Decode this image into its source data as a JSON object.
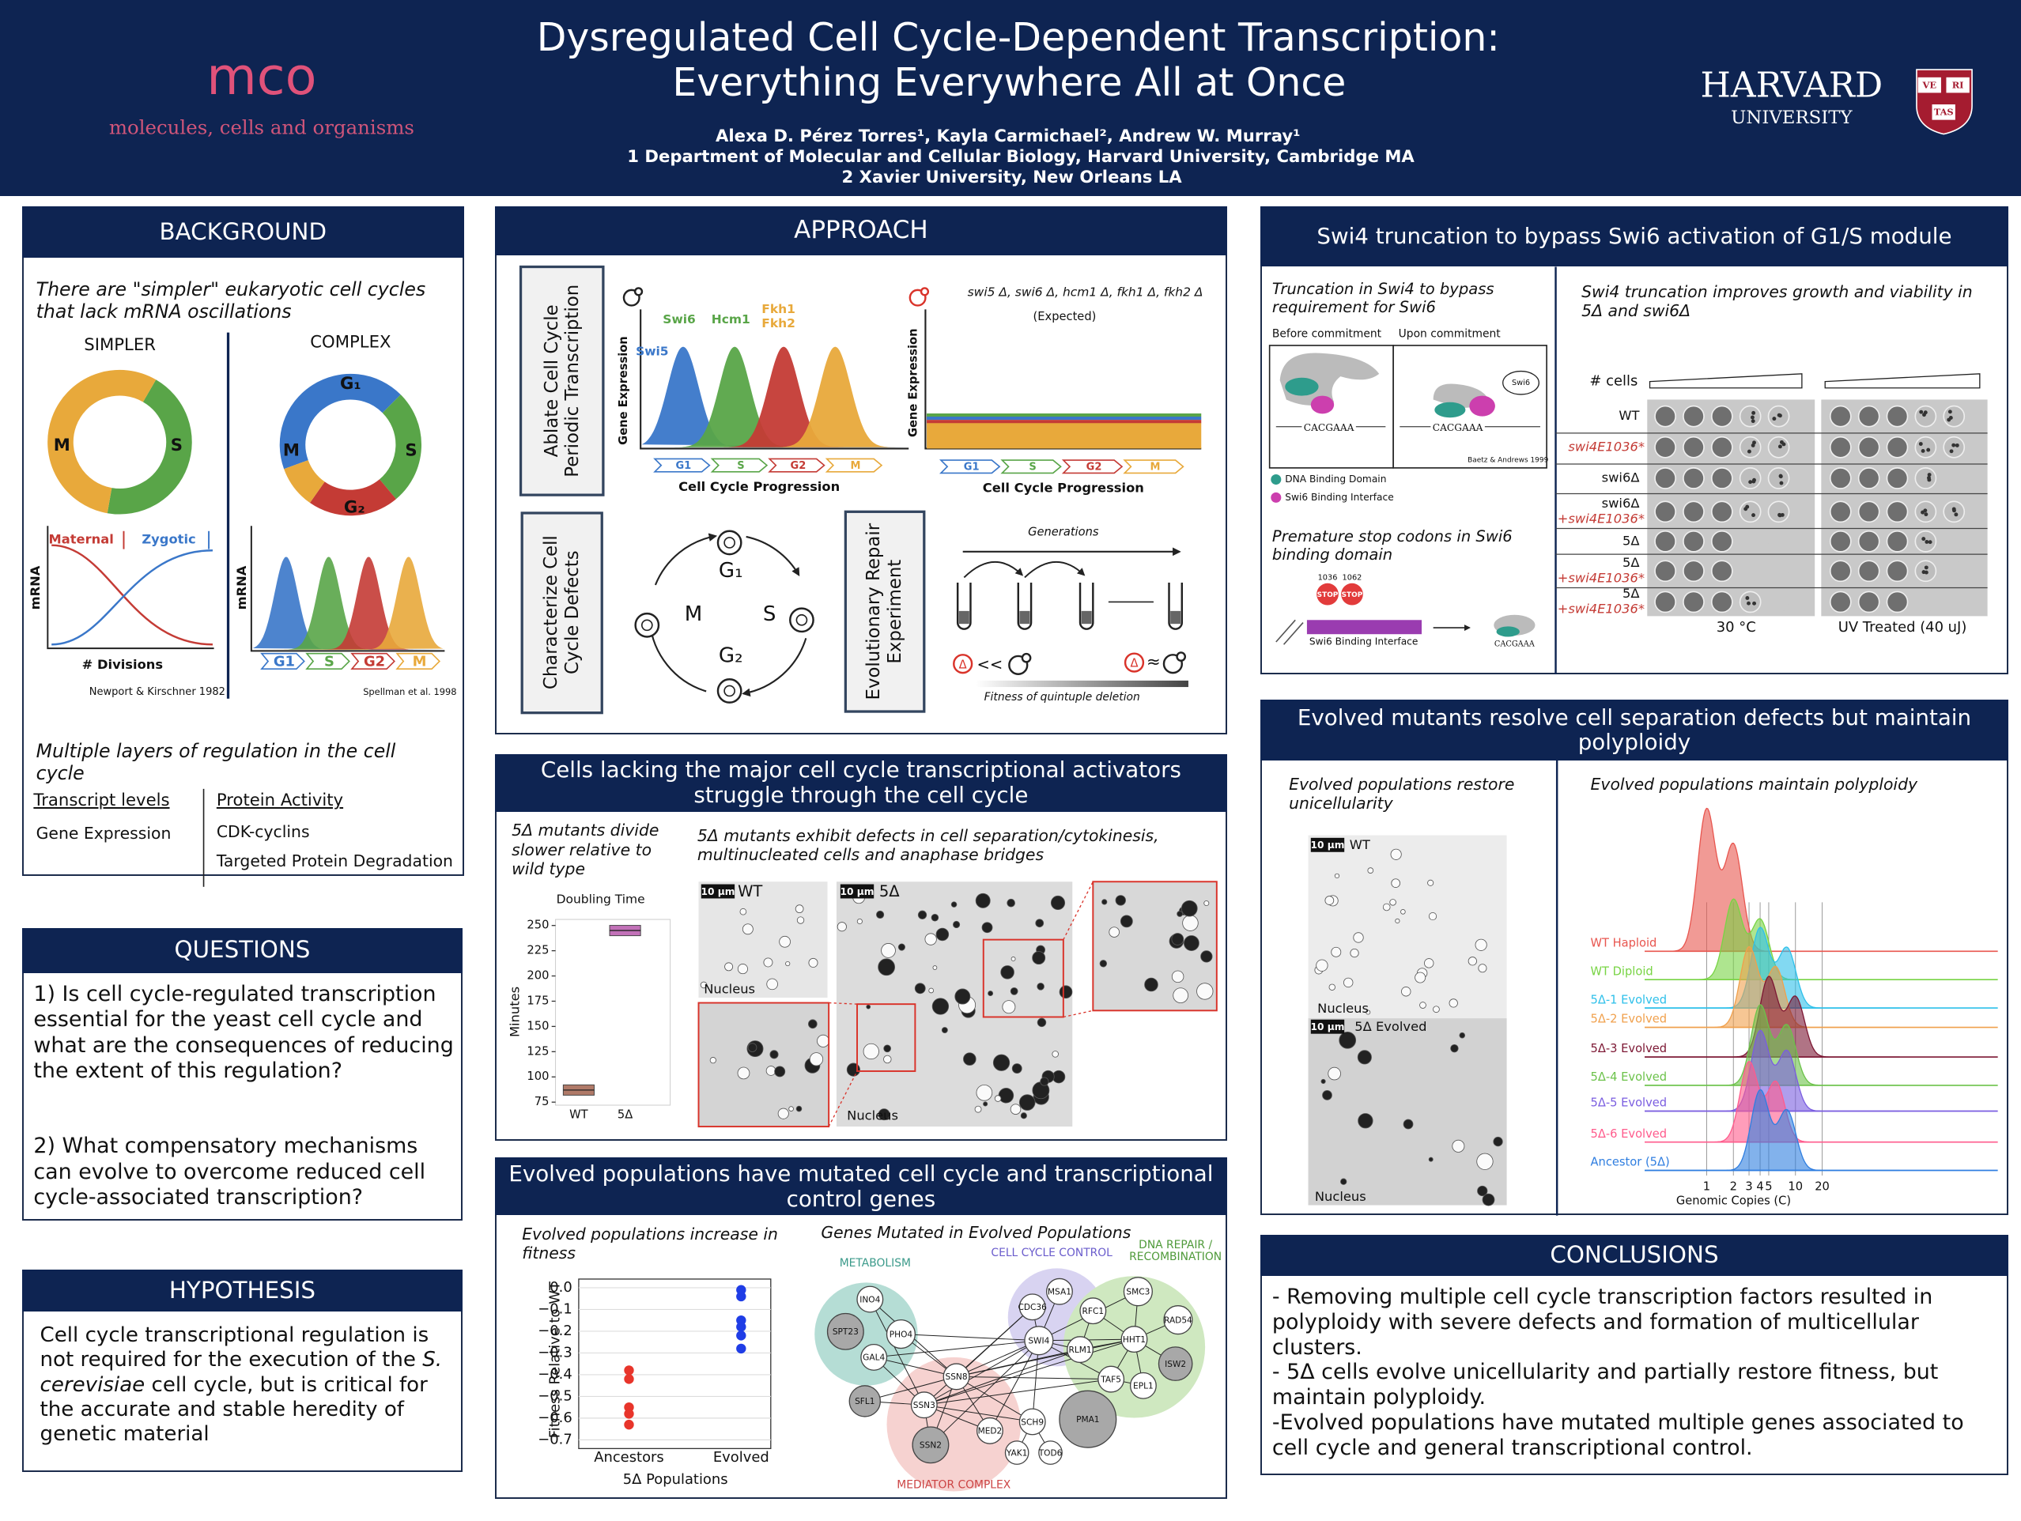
{
  "header": {
    "logo": "mco",
    "logo_subtitle": "molecules, cells and organisms",
    "title_line1": "Dysregulated Cell Cycle-Dependent Transcription:",
    "title_line2": "Everything Everywhere All at Once",
    "authors": "Alexa D. Pérez Torres¹, Kayla Carmichael², Andrew W. Murray¹",
    "affiliation1": "1 Department of Molecular and Cellular Biology, Harvard University, Cambridge MA",
    "affiliation2": "2 Xavier University, New Orleans LA",
    "university": "HARVARD",
    "university_sub": "UNIVERSITY",
    "shield": [
      "VE",
      "RI",
      "TAS"
    ]
  },
  "background": {
    "title": "BACKGROUND",
    "intro": "There are \"simpler\" eukaryotic cell cycles that lack mRNA oscillations",
    "simpler": "SIMPLER",
    "complex": "COMPLEX",
    "simpler_ring": [
      "M",
      "S"
    ],
    "complex_ring": [
      "G₁",
      "S",
      "G₂",
      "M"
    ],
    "maternal": "Maternal",
    "zygotic": "Zygotic",
    "mrna": "mRNA",
    "divisions": "# Divisions",
    "cite1": "Newport & Kirschner 1982",
    "cite2": "Spellman et al. 1998",
    "phases": [
      "G1",
      "S",
      "G2",
      "M"
    ],
    "layers": "Multiple layers of regulation in the cell cycle",
    "transcript": "Transcript levels",
    "protein": "Protein Activity",
    "gene_expression": "Gene Expression",
    "cdk": "CDK-cyclins",
    "degradation": "Targeted Protein Degradation"
  },
  "questions": {
    "title": "QUESTIONS",
    "q1": "1)    Is cell cycle-regulated transcription essential for the yeast cell cycle and what are the consequences of reducing the extent of this regulation?",
    "q2": "2)    What compensatory mechanisms can evolve to overcome reduced cell cycle-associated transcription?"
  },
  "hypothesis": {
    "title": "HYPOTHESIS",
    "text_start": "Cell cycle transcriptional regulation is not required for the execution of the ",
    "species": "S. cerevisiae",
    "text_end": "  cell cycle, but is critical for the accurate and stable heredity of genetic material"
  },
  "approach": {
    "title": "APPROACH",
    "box1": "Ablate Cell Cycle Periodic Transcription",
    "box2": "Characterize Cell Cycle Defects",
    "box3": "Evolutionary Repair Experiment",
    "factors": [
      "Swi5",
      "Swi6",
      "Hcm1",
      "Fkh1",
      "Fkh2"
    ],
    "gene_expression": "Gene Expression",
    "progression": "Cell Cycle Progression",
    "phases": [
      "G1",
      "S",
      "G2",
      "M"
    ],
    "deletions": "swi5 Δ, swi6 Δ, hcm1 Δ, fkh1 Δ, fkh2 Δ",
    "expected": "(Expected)",
    "cycle": [
      "G₁",
      "S",
      "G₂",
      "M"
    ],
    "generations": "Generations",
    "fitness": "Fitness of quintuple deletion",
    "delta": "Δ",
    "much_less": "<<",
    "approx": "≈"
  },
  "cells": {
    "title": "Cells lacking the major cell cycle  transcriptional activators struggle through the cell cycle",
    "caption_left": "5Δ mutants divide slower relative to wild type",
    "caption_right": "5Δ mutants exhibit defects in cell separation/cytokinesis, multinucleated cells and anaphase bridges",
    "scalebar": "10 µm",
    "wt": "WT",
    "five": "5Δ",
    "nucleus": "Nucleus",
    "chart": {
      "type": "box",
      "title": "Doubling Time",
      "ylabel": "Minutes",
      "categories": [
        "WT",
        "5Δ"
      ],
      "values": [
        87,
        245
      ],
      "colors": [
        "#b07a68",
        "#c271b8"
      ],
      "ylim": [
        72,
        256
      ],
      "yticks": [
        75,
        100,
        125,
        150,
        175,
        200,
        225,
        250
      ]
    }
  },
  "evolved": {
    "title": "Evolved populations have mutated cell cycle and transcriptional control genes",
    "caption": "Evolved populations increase in fitness",
    "chart": {
      "type": "scatter",
      "ylabel": "Fitness Relative to WT",
      "xlabel": "5Δ Populations",
      "categories": [
        "Ancestors",
        "Evolved"
      ],
      "series": [
        {
          "color": "#e8352b",
          "values": [
            -0.38,
            -0.42,
            -0.55,
            -0.58,
            -0.63
          ]
        },
        {
          "color": "#1f3de6",
          "values": [
            -0.01,
            -0.04,
            -0.15,
            -0.18,
            -0.22,
            -0.28
          ]
        }
      ],
      "ylim": [
        -0.74,
        0.04
      ],
      "yticks": [
        {
          "value": 0,
          "label": "0.0"
        },
        {
          "value": -0.1,
          "label": "−0.1"
        },
        {
          "value": -0.2,
          "label": "−0.2"
        },
        {
          "value": -0.3,
          "label": "−0.3"
        },
        {
          "value": -0.4,
          "label": "−0.4"
        },
        {
          "value": -0.5,
          "label": "−0.5"
        },
        {
          "value": -0.6,
          "label": "−0.6"
        },
        {
          "value": -0.7,
          "label": "−0.7"
        }
      ],
      "grid": true
    },
    "network": {
      "caption": "Genes Mutated in Evolved Populations",
      "groups": [
        "METABOLISM",
        "CELL CYCLE CONTROL",
        "DNA REPAIR / RECOMBINATION",
        "MEDIATOR COMPLEX"
      ],
      "nodes": [
        "INO4",
        "SPT23",
        "PHO4",
        "GAL4",
        "SFL1",
        "SSN8",
        "SSN3",
        "SSN2",
        "MED2",
        "CDC36",
        "MSA1",
        "SWI4",
        "RFC1",
        "RLM1",
        "SMC3",
        "HHT1",
        "RAD54",
        "ISW2",
        "TAF5",
        "EPL1",
        "SCH9",
        "YAK1",
        "TOD6",
        "PMA1"
      ]
    }
  },
  "swi4": {
    "title": "Swi4 truncation to bypass Swi6 activation of G1/S module",
    "caption_left": "Truncation in Swi4 to bypass requirement for Swi6",
    "before": "Before commitment",
    "upon": "Upon commitment",
    "swi6": "Swi6",
    "motif": "CACGAAA",
    "cite": "Baetz & Andrews 1999",
    "legend": [
      "DNA Binding Domain",
      "Swi6 Binding Interface"
    ],
    "caption_stop": "Premature stop codons in Swi6 binding domain",
    "positions": [
      1036,
      1062
    ],
    "stop": "STOP",
    "interface": "Swi6 Binding Interface",
    "caption_right": "Swi4 truncation improves growth and viability in 5Δ and swi6Δ",
    "cells": "# cells",
    "rows": [
      {
        "strain": "WT"
      },
      {
        "addition": "swi4E1036*"
      },
      {
        "strain": "swi6Δ"
      },
      {
        "strain": "swi6Δ",
        "addition": "+swi4E1036*"
      },
      {
        "strain": "5Δ"
      },
      {
        "strain": "5Δ",
        "addition": "+swi4E1036*"
      },
      {
        "strain": "5Δ",
        "addition": "+swi4E1036*"
      }
    ],
    "conditions": [
      "30 °C",
      "UV Treated (40 uJ)"
    ]
  },
  "mutants": {
    "title": "Evolved mutants resolve cell separation defects but maintain polyploidy",
    "caption_left": "Evolved populations restore unicellularity",
    "caption_right": "Evolved populations maintain polyploidy",
    "scalebar": "10 µm",
    "wt": "WT",
    "evolved": "5Δ Evolved",
    "nucleus": "Nucleus",
    "chart": {
      "type": "ridgeline",
      "xlabel": "Genomic Copies (C)",
      "log_x": true,
      "xlim": [
        0.2,
        150
      ],
      "xticks": [
        1,
        2,
        3,
        4,
        5,
        10,
        20
      ],
      "series": [
        {
          "name": "WT Haploid",
          "color": "#e8564f",
          "peak_copies": [
            1,
            2
          ]
        },
        {
          "name": "WT Diploid",
          "color": "#78d444",
          "peak_copies": [
            2,
            4
          ]
        },
        {
          "name": "5Δ-1 Evolved",
          "color": "#2ec0ea",
          "peak_copies": [
            4,
            8
          ]
        },
        {
          "name": "5Δ-2 Evolved",
          "color": "#f0a04c",
          "peak_copies": [
            3,
            6
          ]
        },
        {
          "name": "5Δ-3 Evolved",
          "color": "#7c1733",
          "peak_copies": [
            5,
            10
          ]
        },
        {
          "name": "5Δ-4 Evolved",
          "color": "#6cc24a",
          "peak_copies": [
            4,
            8
          ]
        },
        {
          "name": "5Δ-5 Evolved",
          "color": "#7a5de0",
          "peak_copies": [
            4,
            8
          ]
        },
        {
          "name": "5Δ-6 Evolved",
          "color": "#ff5b8c",
          "peak_copies": [
            3,
            6
          ]
        },
        {
          "name": "Ancestor (5Δ)",
          "color": "#2f7ee0",
          "peak_copies": [
            4,
            8
          ]
        }
      ]
    }
  },
  "conclusions": {
    "title": "CONCLUSIONS",
    "items": [
      "- Removing multiple cell cycle transcription factors resulted in polyploidy with severe defects and formation of multicellular clusters.",
      "- 5Δ cells evolve unicellularity and partially restore fitness, but maintain polyploidy.",
      "-Evolved populations have mutated multiple genes associated to cell cycle and general transcriptional control."
    ]
  }
}
